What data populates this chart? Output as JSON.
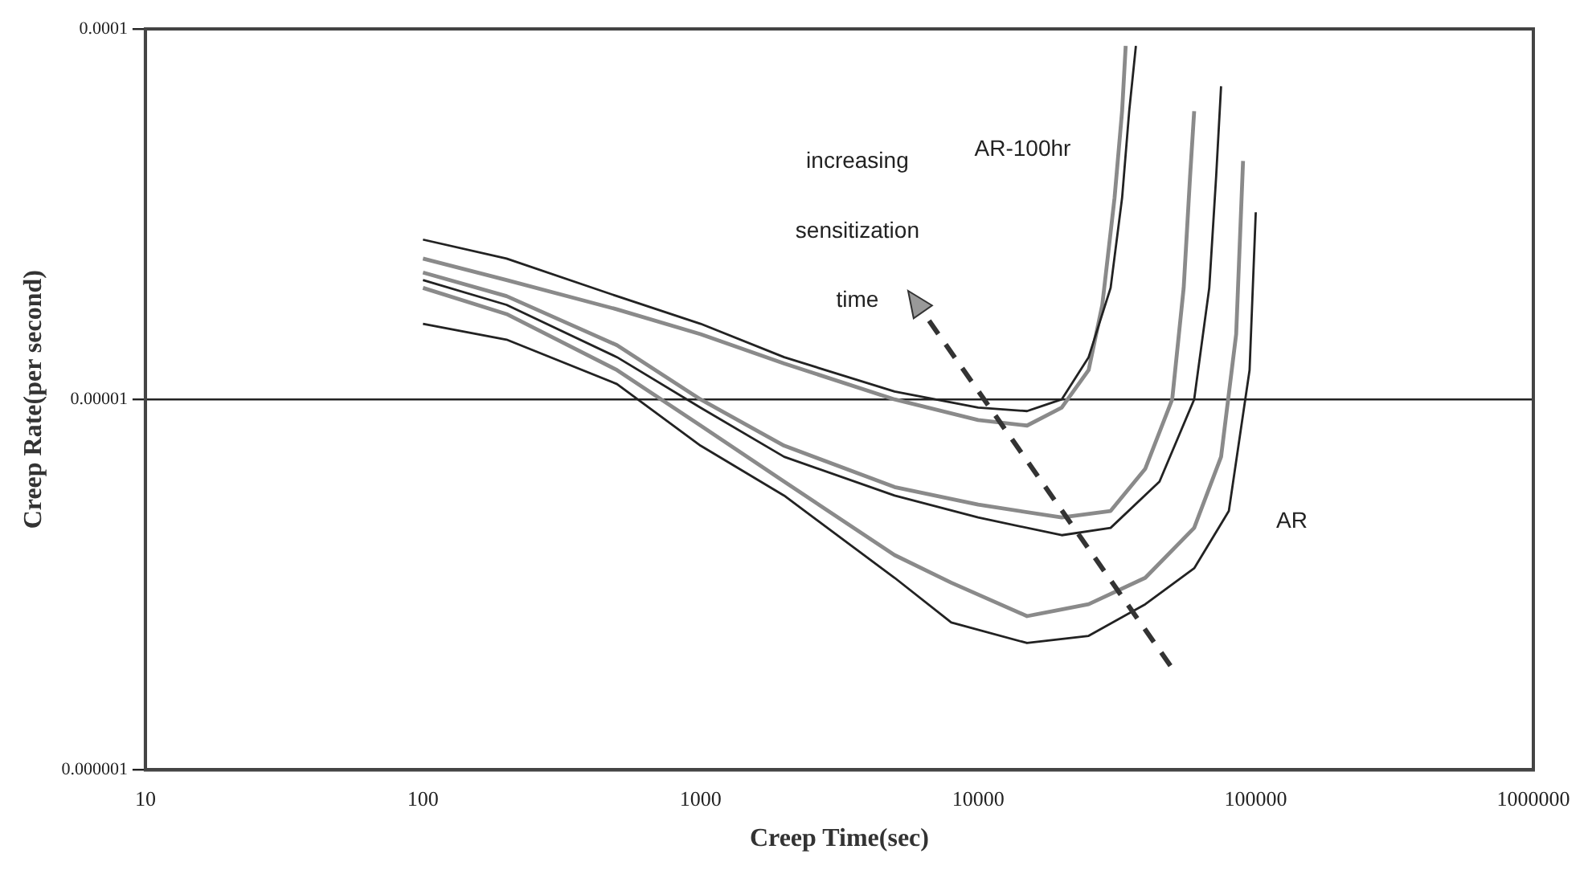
{
  "chart_data": {
    "type": "line",
    "xlabel": "Creep Time(sec)",
    "ylabel": "Creep Rate(per second)",
    "log": "xy",
    "xlim": [
      10,
      1000000
    ],
    "ylim": [
      1e-06,
      0.0001
    ],
    "xticks": [
      10,
      100,
      1000,
      10000,
      100000,
      1000000
    ],
    "yticks": [
      {
        "value": 1e-06,
        "label": "0.000001"
      },
      {
        "value": 1e-05,
        "label": "0.00001"
      },
      {
        "value": 0.0001,
        "label": "0.0001"
      }
    ],
    "grid": "y",
    "legend": false,
    "marker": "none",
    "line_style": "solid",
    "annotations": [
      "AR-100hr",
      "AR",
      "increasing sensitization time"
    ],
    "series": [
      {
        "color": "#222222",
        "x": [
          100,
          200,
          500,
          1000,
          2000,
          5000,
          10000,
          15000,
          20000,
          25000,
          30000,
          33000,
          35000,
          37000
        ],
        "values": [
          2.7e-05,
          2.4e-05,
          1.9e-05,
          1.6e-05,
          1.3e-05,
          1.05e-05,
          9.5e-06,
          9.3e-06,
          1e-05,
          1.3e-05,
          2e-05,
          3.5e-05,
          6e-05,
          9e-05
        ]
      },
      {
        "color": "#8a8a8a",
        "x": [
          100,
          200,
          500,
          1000,
          2000,
          5000,
          10000,
          15000,
          20000,
          25000,
          28000,
          31000,
          33000,
          34000
        ],
        "values": [
          2.4e-05,
          2.1e-05,
          1.75e-05,
          1.5e-05,
          1.25e-05,
          1e-05,
          8.8e-06,
          8.5e-06,
          9.5e-06,
          1.2e-05,
          1.8e-05,
          3.5e-05,
          6e-05,
          9e-05
        ]
      },
      {
        "color": "#8a8a8a",
        "x": [
          100,
          200,
          500,
          1000,
          2000,
          5000,
          10000,
          20000,
          30000,
          40000,
          50000,
          55000,
          58000,
          60000
        ],
        "values": [
          2.2e-05,
          1.9e-05,
          1.4e-05,
          1e-05,
          7.5e-06,
          5.8e-06,
          5.2e-06,
          4.8e-06,
          5e-06,
          6.5e-06,
          1e-05,
          2e-05,
          4e-05,
          6e-05
        ]
      },
      {
        "color": "#222222",
        "x": [
          100,
          200,
          500,
          1000,
          2000,
          5000,
          10000,
          20000,
          30000,
          45000,
          60000,
          68000,
          72000,
          75000
        ],
        "values": [
          2.1e-05,
          1.8e-05,
          1.3e-05,
          9.5e-06,
          7e-06,
          5.5e-06,
          4.8e-06,
          4.3e-06,
          4.5e-06,
          6e-06,
          1e-05,
          2e-05,
          4e-05,
          7e-05
        ]
      },
      {
        "color": "#8a8a8a",
        "x": [
          100,
          200,
          500,
          1000,
          2000,
          5000,
          8000,
          15000,
          25000,
          40000,
          60000,
          75000,
          85000,
          90000
        ],
        "values": [
          2e-05,
          1.7e-05,
          1.2e-05,
          8.5e-06,
          6e-06,
          3.8e-06,
          3.2e-06,
          2.6e-06,
          2.8e-06,
          3.3e-06,
          4.5e-06,
          7e-06,
          1.5e-05,
          4.4e-05
        ]
      },
      {
        "color": "#222222",
        "x": [
          100,
          200,
          500,
          1000,
          2000,
          5000,
          8000,
          15000,
          25000,
          40000,
          60000,
          80000,
          95000,
          100000
        ],
        "values": [
          1.6e-05,
          1.45e-05,
          1.1e-05,
          7.5e-06,
          5.5e-06,
          3.3e-06,
          2.5e-06,
          2.2e-06,
          2.3e-06,
          2.8e-06,
          3.5e-06,
          5e-06,
          1.2e-05,
          3.2e-05
        ]
      }
    ]
  }
}
